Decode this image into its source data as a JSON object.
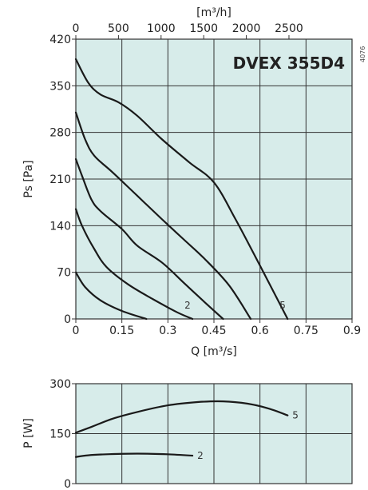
{
  "chart_data": [
    {
      "type": "line",
      "title": "DVEX 355D4",
      "code": "4076",
      "xlabel": "Q [m³/s]",
      "x2label": "[m³/h]",
      "ylabel": "Ps [Pa]",
      "xlim": [
        0,
        0.9
      ],
      "ylim": [
        0,
        420
      ],
      "x2lim": [
        0,
        3240
      ],
      "xticks": [
        "0",
        "0.15",
        "0.3",
        "0.45",
        "0.6",
        "0.75",
        "0.9"
      ],
      "x2ticks": [
        "0",
        "500",
        "1000",
        "1500",
        "2000",
        "2500"
      ],
      "yticks": [
        "0",
        "70",
        "140",
        "210",
        "280",
        "350",
        "420"
      ],
      "grid": true,
      "background": "#d7ecea",
      "series": [
        {
          "points": [
            [
              0,
              70
            ],
            [
              0.03,
              48
            ],
            [
              0.08,
              28
            ],
            [
              0.15,
              12
            ],
            [
              0.23,
              0
            ]
          ]
        },
        {
          "name": "2",
          "points": [
            [
              0,
              165
            ],
            [
              0.02,
              140
            ],
            [
              0.06,
              105
            ],
            [
              0.1,
              78
            ],
            [
              0.17,
              52
            ],
            [
              0.25,
              30
            ],
            [
              0.33,
              10
            ],
            [
              0.38,
              0
            ]
          ]
        },
        {
          "points": [
            [
              0,
              240
            ],
            [
              0.02,
              215
            ],
            [
              0.05,
              180
            ],
            [
              0.08,
              162
            ],
            [
              0.15,
              135
            ],
            [
              0.2,
              110
            ],
            [
              0.28,
              85
            ],
            [
              0.35,
              55
            ],
            [
              0.42,
              25
            ],
            [
              0.48,
              0
            ]
          ]
        },
        {
          "points": [
            [
              0,
              310
            ],
            [
              0.03,
              270
            ],
            [
              0.06,
              245
            ],
            [
              0.12,
              220
            ],
            [
              0.2,
              185
            ],
            [
              0.28,
              150
            ],
            [
              0.35,
              120
            ],
            [
              0.42,
              90
            ],
            [
              0.5,
              50
            ],
            [
              0.57,
              0
            ]
          ]
        },
        {
          "name": "5",
          "points": [
            [
              0,
              390
            ],
            [
              0.04,
              355
            ],
            [
              0.08,
              337
            ],
            [
              0.14,
              325
            ],
            [
              0.2,
              305
            ],
            [
              0.28,
              270
            ],
            [
              0.37,
              235
            ],
            [
              0.45,
              205
            ],
            [
              0.52,
              150
            ],
            [
              0.6,
              80
            ],
            [
              0.69,
              0
            ]
          ]
        }
      ]
    },
    {
      "type": "line",
      "ylabel": "P [W]",
      "xlim": [
        0,
        0.9
      ],
      "ylim": [
        0,
        300
      ],
      "yticks": [
        "0",
        "150",
        "300"
      ],
      "grid": true,
      "background": "#d7ecea",
      "series": [
        {
          "name": "5",
          "points": [
            [
              0,
              153
            ],
            [
              0.05,
              170
            ],
            [
              0.12,
              195
            ],
            [
              0.2,
              215
            ],
            [
              0.3,
              235
            ],
            [
              0.4,
              245
            ],
            [
              0.48,
              247
            ],
            [
              0.56,
              240
            ],
            [
              0.63,
              225
            ],
            [
              0.69,
              205
            ]
          ]
        },
        {
          "name": "2",
          "points": [
            [
              0,
              80
            ],
            [
              0.04,
              85
            ],
            [
              0.1,
              88
            ],
            [
              0.2,
              90
            ],
            [
              0.3,
              88
            ],
            [
              0.38,
              84
            ]
          ]
        }
      ]
    }
  ]
}
